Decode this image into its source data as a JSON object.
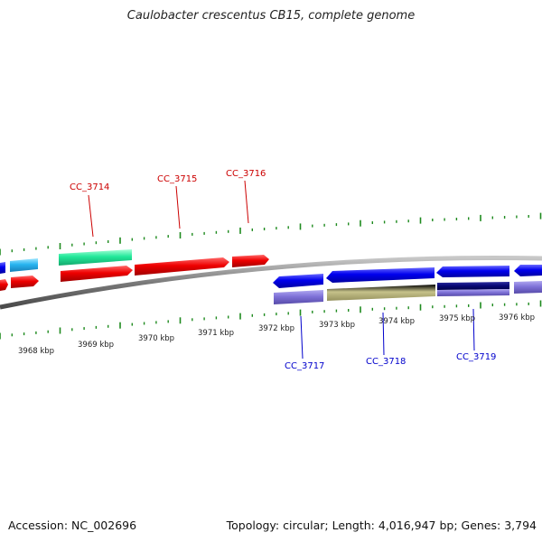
{
  "title": "Caulobacter crescentus CB15, complete genome",
  "footer": {
    "accession": "Accession: NC_002696",
    "summary": "Topology: circular; Length: 4,016,947 bp; Genes: 3,794"
  },
  "colors": {
    "backbone": "#8a8a8a",
    "tick": "#1e8a1e",
    "forward_label": "#cc0000",
    "reverse_label": "#0000cc"
  },
  "scale_labels": [
    "3968 kbp",
    "3969 kbp",
    "3970 kbp",
    "3971 kbp",
    "3972 kbp",
    "3973 kbp",
    "3974 kbp",
    "3975 kbp",
    "3976 kbp"
  ],
  "gene_labels": [
    {
      "text": "CC_3714",
      "strand": "forward"
    },
    {
      "text": "CC_3715",
      "strand": "forward"
    },
    {
      "text": "CC_3716",
      "strand": "forward"
    },
    {
      "text": "CC_3717",
      "strand": "reverse"
    },
    {
      "text": "CC_3718",
      "strand": "reverse"
    },
    {
      "text": "CC_3719",
      "strand": "reverse"
    }
  ]
}
